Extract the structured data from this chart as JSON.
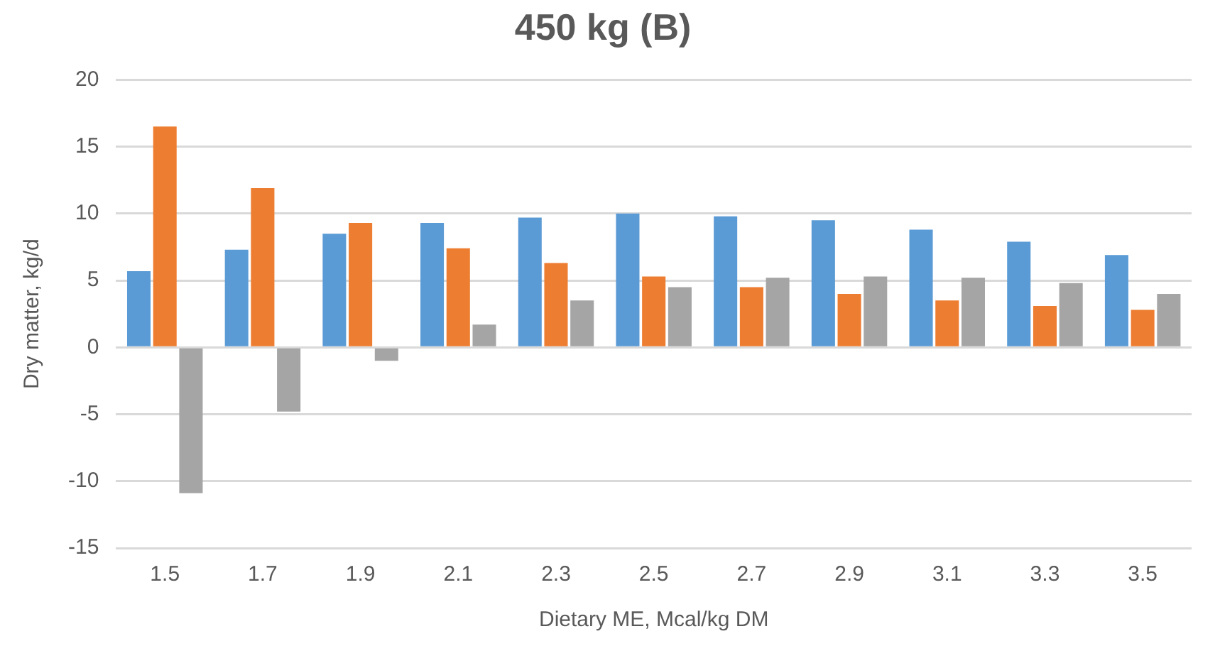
{
  "chart_data": {
    "type": "bar",
    "title": "450 kg (B)",
    "xlabel": "Dietary ME, Mcal/kg DM",
    "ylabel": "Dry matter, kg/d",
    "categories": [
      "1.5",
      "1.7",
      "1.9",
      "2.1",
      "2.3",
      "2.5",
      "2.7",
      "2.9",
      "3.1",
      "3.3",
      "3.5"
    ],
    "series": [
      {
        "color": "#5b9bd5",
        "values": [
          5.7,
          7.3,
          8.5,
          9.3,
          9.7,
          10.0,
          9.8,
          9.5,
          8.8,
          7.9,
          6.9
        ]
      },
      {
        "color": "#ed7d31",
        "values": [
          16.5,
          11.9,
          9.3,
          7.4,
          6.3,
          5.3,
          4.5,
          4.0,
          3.5,
          3.1,
          2.8
        ]
      },
      {
        "color": "#a5a5a5",
        "values": [
          -10.9,
          -4.8,
          -1.0,
          1.7,
          3.5,
          4.5,
          5.2,
          5.3,
          5.2,
          4.8,
          4.0
        ]
      }
    ],
    "ylim": [
      -15,
      20
    ],
    "yticks": [
      -15,
      -10,
      -5,
      0,
      5,
      10,
      15,
      20
    ],
    "grid": "y",
    "legend": false
  }
}
